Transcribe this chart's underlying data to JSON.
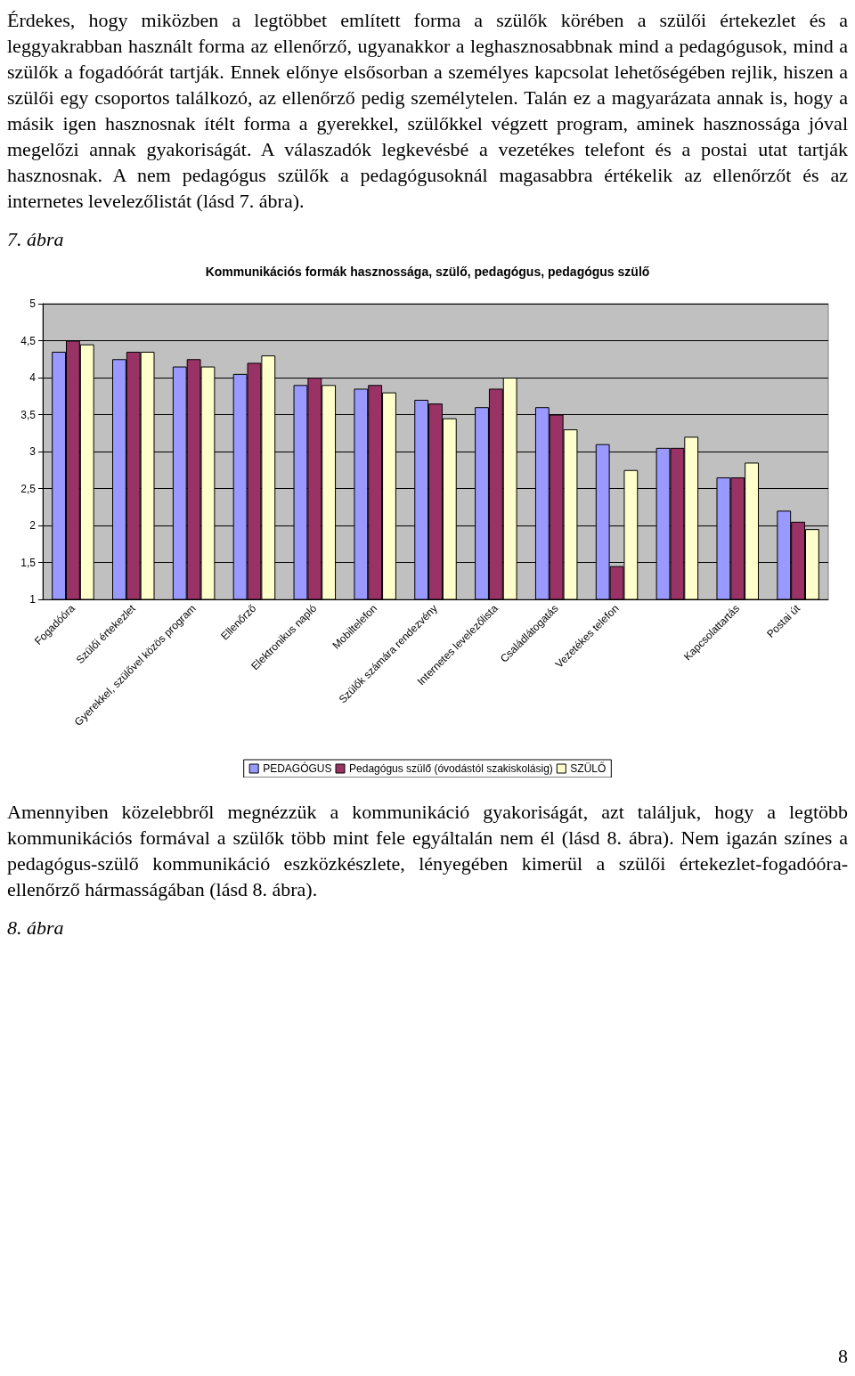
{
  "chart_data": {
    "type": "bar",
    "title": "Kommunikációs formák hasznossága, szülő, pedagógus, pedagógus szülő",
    "categories": [
      "Fogadóóra",
      "Szülői értekezlet",
      "Gyerekkel, szülővel közös program",
      "Ellenőrző",
      "Elektronikus napló",
      "Mobiltelefon",
      "Szülők számára rendezvény",
      "Internetes levelezőlista",
      "Családlátogatás",
      "Vezetékes telefon",
      null,
      "Kapcsolattartás",
      "Postai út"
    ],
    "series": [
      {
        "name": "PEDAGÓGUS",
        "color": "#9999ff",
        "values": [
          4.35,
          4.25,
          4.15,
          4.05,
          3.9,
          3.85,
          3.7,
          3.6,
          3.6,
          3.1,
          3.05,
          2.65,
          2.2
        ]
      },
      {
        "name": "Pedagógus szülő (óvodástól szakiskolásig)",
        "color": "#993366",
        "values": [
          4.5,
          4.35,
          4.25,
          4.2,
          4.0,
          3.9,
          3.65,
          3.85,
          3.5,
          1.45,
          3.05,
          2.65,
          2.05
        ]
      },
      {
        "name": "SZÜLŐ",
        "color": "#ffffcc",
        "values": [
          4.45,
          4.35,
          4.15,
          4.3,
          3.9,
          3.8,
          3.45,
          4.0,
          3.3,
          2.75,
          3.2,
          2.85,
          1.95
        ]
      }
    ],
    "ylim": [
      1,
      5
    ],
    "yticks": [
      1,
      {
        "value": 1.5,
        "label": "1,5"
      },
      2,
      {
        "value": 2.5,
        "label": "2,5"
      },
      3,
      {
        "value": 3.5,
        "label": "3,5"
      },
      4,
      {
        "value": 4.5,
        "label": "4,5"
      },
      5
    ],
    "grid": "y",
    "legend": "bottom",
    "annotations": [
      "Érdekes, hogy miközben a legtöbbet említett forma a szülők körében a szülői értekezlet és a leggyakrabban használt forma az ellenőrző, ugyanakkor a leghasznosabbnak mind a pedagógusok, mind a szülők a fogadóórát tartják. Ennek előnye elsősorban a személyes kapcsolat lehetőségében rejlik, hiszen a szülői egy csoportos találkozó, az ellenőrző pedig személytelen. Talán ez a magyarázata annak is, hogy a másik igen hasznosnak ítélt forma a gyerekkel, szülőkkel végzett program, aminek hasznossága jóval megelőzi annak gyakoriságát. A válaszadók legkevésbé a vezetékes telefont és a postai utat tartják hasznosnak. A nem pedagógus szülők a pedagógusoknál magasabbra értékelik az ellenőrzőt és az internetes levelezőlistát (lásd 7. ábra).",
      "7. ábra",
      "Amennyiben közelebbről megnézzük a kommunikáció gyakoriságát, azt találjuk, hogy a legtöbb kommunikációs formával a szülők több mint fele egyáltalán nem él (lásd 8. ábra). Nem igazán színes a pedagógus-szülő kommunikáció eszközkészlete, lényegében kimerül a szülői értekezlet-fogadóóra-ellenőrző hármasságában (lásd 8. ábra).",
      "8. ábra",
      "8"
    ]
  }
}
